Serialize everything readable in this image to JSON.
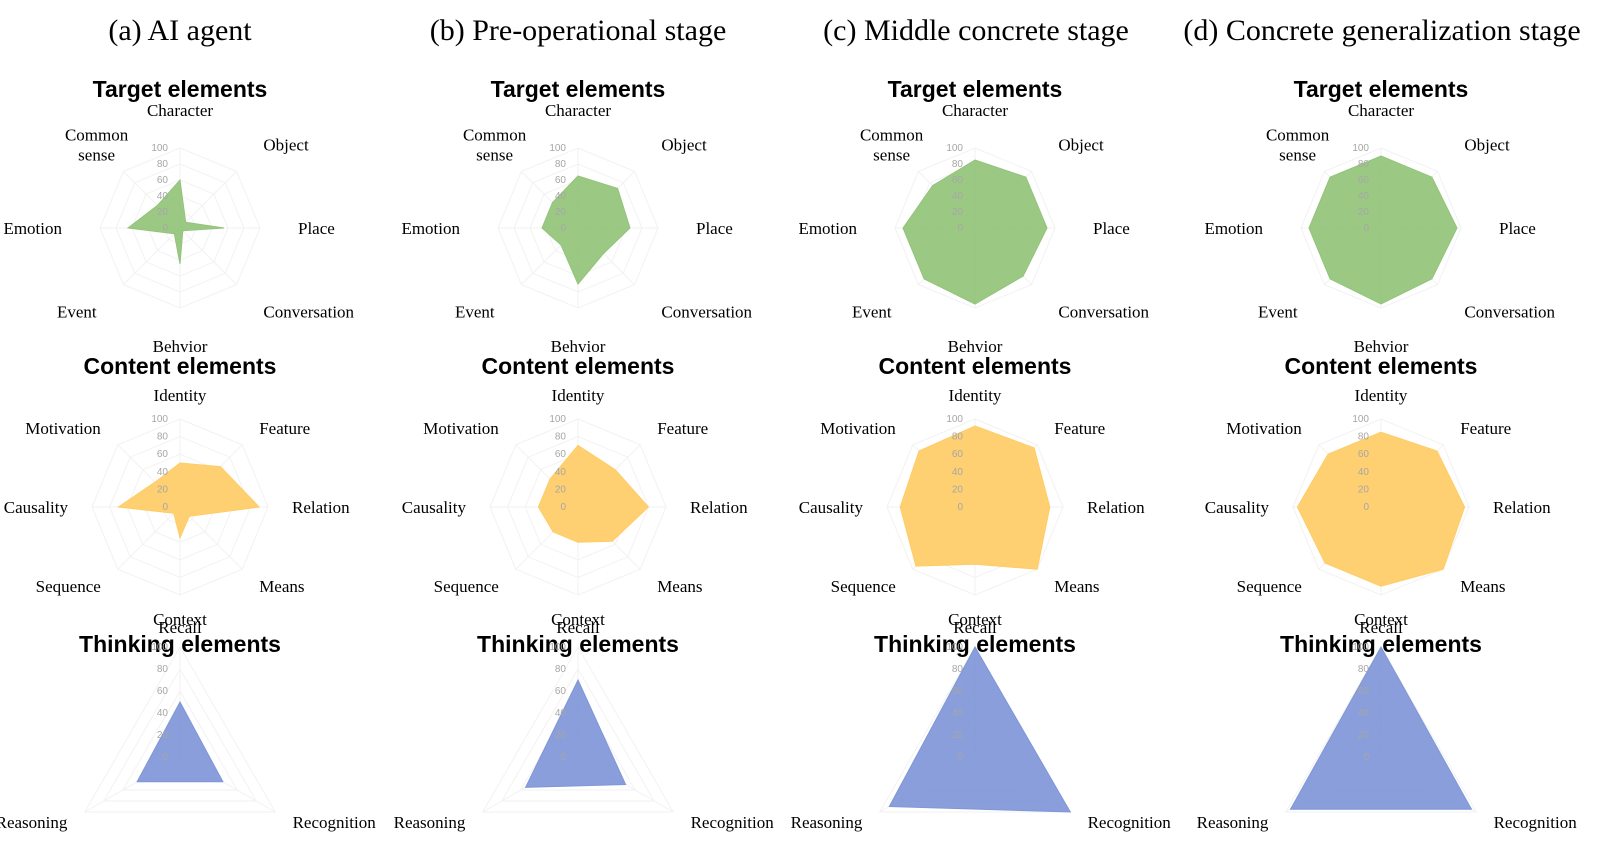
{
  "figure": {
    "columns": [
      {
        "title": "(a) AI agent"
      },
      {
        "title": "(b) Pre-operational stage"
      },
      {
        "title": "(c) Middle concrete stage"
      },
      {
        "title": "(d) Concrete generalization stage"
      }
    ],
    "chart_rows": [
      {
        "title": "Target elements",
        "color": "#92c47a"
      },
      {
        "title": "Content elements",
        "color": "#ffcc66"
      },
      {
        "title": "Thinking elements",
        "color": "#7f96d8"
      }
    ]
  },
  "chart_data": [
    {
      "type": "radar",
      "row": 0,
      "column": 0,
      "title": "Target elements",
      "axes": [
        "Character",
        "Object",
        "Place",
        "Conversation",
        "Behvior",
        "Event",
        "Emotion",
        "Common sense"
      ],
      "ticks": [
        "100",
        "80",
        "60",
        "40",
        "20",
        "0"
      ],
      "ylim": [
        0,
        100
      ],
      "values": [
        60,
        10,
        55,
        5,
        45,
        10,
        65,
        40
      ]
    },
    {
      "type": "radar",
      "row": 1,
      "column": 0,
      "title": "Content elements",
      "axes": [
        "Identity",
        "Feature",
        "Relation",
        "Means",
        "Context",
        "Sequence",
        "Causality",
        "Motivation"
      ],
      "ticks": [
        "100",
        "80",
        "60",
        "40",
        "20",
        "0"
      ],
      "ylim": [
        0,
        100
      ],
      "values": [
        50,
        65,
        90,
        15,
        35,
        10,
        70,
        40
      ]
    },
    {
      "type": "radar",
      "row": 2,
      "column": 0,
      "title": "Thinking elements",
      "axes": [
        "Recall",
        "Recognition",
        "Reasoning"
      ],
      "ticks": [
        "100",
        "80",
        "60",
        "40",
        "20",
        "0"
      ],
      "ylim": [
        0,
        100
      ],
      "values": [
        50,
        45,
        45
      ]
    },
    {
      "type": "radar",
      "row": 0,
      "column": 1,
      "title": "Target elements",
      "axes": [
        "Character",
        "Object",
        "Place",
        "Conversation",
        "Behvior",
        "Event",
        "Emotion",
        "Common sense"
      ],
      "ticks": [
        "100",
        "80",
        "60",
        "40",
        "20",
        "0"
      ],
      "ylim": [
        0,
        100
      ],
      "values": [
        65,
        70,
        65,
        45,
        70,
        30,
        45,
        45
      ]
    },
    {
      "type": "radar",
      "row": 1,
      "column": 1,
      "title": "Content elements",
      "axes": [
        "Identity",
        "Feature",
        "Relation",
        "Means",
        "Context",
        "Sequence",
        "Causality",
        "Motivation"
      ],
      "ticks": [
        "100",
        "80",
        "60",
        "40",
        "20",
        "0"
      ],
      "ylim": [
        0,
        100
      ],
      "values": [
        70,
        60,
        80,
        55,
        40,
        40,
        45,
        45
      ]
    },
    {
      "type": "radar",
      "row": 2,
      "column": 1,
      "title": "Thinking elements",
      "axes": [
        "Recall",
        "Recognition",
        "Reasoning"
      ],
      "ticks": [
        "100",
        "80",
        "60",
        "40",
        "20",
        "0"
      ],
      "ylim": [
        0,
        100
      ],
      "values": [
        70,
        50,
        55
      ]
    },
    {
      "type": "radar",
      "row": 0,
      "column": 2,
      "title": "Target elements",
      "axes": [
        "Character",
        "Object",
        "Place",
        "Conversation",
        "Behvior",
        "Event",
        "Emotion",
        "Common sense"
      ],
      "ticks": [
        "100",
        "80",
        "60",
        "40",
        "20",
        "0"
      ],
      "ylim": [
        0,
        100
      ],
      "values": [
        85,
        90,
        90,
        85,
        95,
        90,
        90,
        75
      ]
    },
    {
      "type": "radar",
      "row": 1,
      "column": 2,
      "title": "Content elements",
      "axes": [
        "Identity",
        "Feature",
        "Relation",
        "Means",
        "Context",
        "Sequence",
        "Causality",
        "Motivation"
      ],
      "ticks": [
        "100",
        "80",
        "60",
        "40",
        "20",
        "0"
      ],
      "ylim": [
        0,
        100
      ],
      "values": [
        92,
        95,
        85,
        100,
        65,
        95,
        85,
        90
      ]
    },
    {
      "type": "radar",
      "row": 2,
      "column": 2,
      "title": "Thinking elements",
      "axes": [
        "Recall",
        "Recognition",
        "Reasoning"
      ],
      "ticks": [
        "100",
        "80",
        "60",
        "40",
        "20",
        "0"
      ],
      "ylim": [
        0,
        100
      ],
      "values": [
        100,
        100,
        90
      ]
    },
    {
      "type": "radar",
      "row": 0,
      "column": 3,
      "title": "Target elements",
      "axes": [
        "Character",
        "Object",
        "Place",
        "Conversation",
        "Behvior",
        "Event",
        "Emotion",
        "Common sense"
      ],
      "ticks": [
        "100",
        "80",
        "60",
        "40",
        "20",
        "0"
      ],
      "ylim": [
        0,
        100
      ],
      "values": [
        90,
        90,
        95,
        90,
        95,
        90,
        90,
        90
      ]
    },
    {
      "type": "radar",
      "row": 1,
      "column": 3,
      "title": "Content elements",
      "axes": [
        "Identity",
        "Feature",
        "Relation",
        "Means",
        "Context",
        "Sequence",
        "Causality",
        "Motivation"
      ],
      "ticks": [
        "100",
        "80",
        "60",
        "40",
        "20",
        "0"
      ],
      "ylim": [
        0,
        100
      ],
      "values": [
        85,
        90,
        95,
        100,
        90,
        90,
        95,
        85
      ]
    },
    {
      "type": "radar",
      "row": 2,
      "column": 3,
      "title": "Thinking elements",
      "axes": [
        "Recall",
        "Recognition",
        "Reasoning"
      ],
      "ticks": [
        "100",
        "80",
        "60",
        "40",
        "20",
        "0"
      ],
      "ylim": [
        0,
        100
      ],
      "values": [
        100,
        95,
        95
      ]
    }
  ]
}
